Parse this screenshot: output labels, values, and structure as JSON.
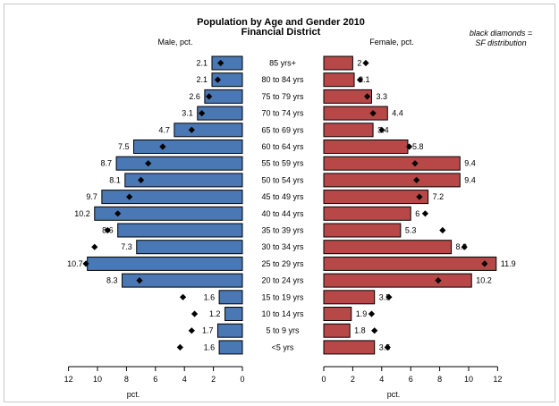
{
  "chart_data": {
    "type": "bar",
    "title": "Population by Age and Gender 2010",
    "subtitle": "Financial District",
    "note": [
      "black diamonds =",
      "SF distribution"
    ],
    "male_label": "Male, pct.",
    "female_label": "Female, pct.",
    "xlabel": "pct.",
    "xlim": [
      0,
      12
    ],
    "xticks": [
      0,
      2,
      4,
      6,
      8,
      10,
      12
    ],
    "categories": [
      "85 yrs+",
      "80 to 84 yrs",
      "75 to 79 yrs",
      "70 to 74 yrs",
      "65 to 69 yrs",
      "60 to 64 yrs",
      "55 to 59 yrs",
      "50 to 54 yrs",
      "45 to 49 yrs",
      "40 to 44 yrs",
      "35 to 39 yrs",
      "30 to 34 yrs",
      "25 to 29 yrs",
      "20 to 24 yrs",
      "15 to 19 yrs",
      "10 to 14 yrs",
      "5 to 9 yrs",
      "<5 yrs"
    ],
    "series": [
      {
        "name": "Male",
        "color": "#4a78b4",
        "values": [
          2.1,
          2.1,
          2.6,
          3.1,
          4.7,
          7.5,
          8.7,
          8.1,
          9.7,
          10.2,
          8.6,
          7.3,
          10.7,
          8.3,
          1.6,
          1.2,
          1.7,
          1.6
        ]
      },
      {
        "name": "Female",
        "color": "#b84848",
        "values": [
          2.0,
          2.1,
          3.3,
          4.4,
          3.4,
          5.8,
          9.4,
          9.4,
          7.2,
          6.0,
          5.3,
          8.8,
          11.9,
          10.2,
          3.5,
          1.9,
          1.8,
          3.5
        ]
      }
    ],
    "value_labels": {
      "male": [
        "2.1",
        "2.1",
        "2.6",
        "3.1",
        "4.7",
        "7.5",
        "8.7",
        "8.1",
        "9.7",
        "10.2",
        "8.6",
        "7.3",
        "10.7",
        "8.3",
        "1.6",
        "1.2",
        "1.7",
        "1.6"
      ],
      "female": [
        "2",
        "2.1",
        "3.3",
        "4.4",
        "3.4",
        "5.8",
        "9.4",
        "9.4",
        "7.2",
        "6",
        "5.3",
        "8.8",
        "11.9",
        "10.2",
        "3.5",
        "1.9",
        "1.8",
        "3.5"
      ]
    },
    "sf_distribution": {
      "male": [
        1.5,
        1.7,
        2.3,
        2.8,
        3.5,
        5.5,
        6.5,
        7.0,
        7.8,
        8.6,
        9.3,
        10.2,
        10.8,
        7.1,
        4.1,
        3.3,
        3.5,
        4.3
      ],
      "female": [
        2.9,
        2.5,
        3.0,
        3.4,
        4.0,
        5.9,
        6.3,
        6.4,
        6.6,
        7.0,
        8.2,
        9.7,
        11.1,
        7.9,
        4.5,
        3.3,
        3.5,
        4.4
      ]
    },
    "grid": false,
    "legend": "none"
  }
}
